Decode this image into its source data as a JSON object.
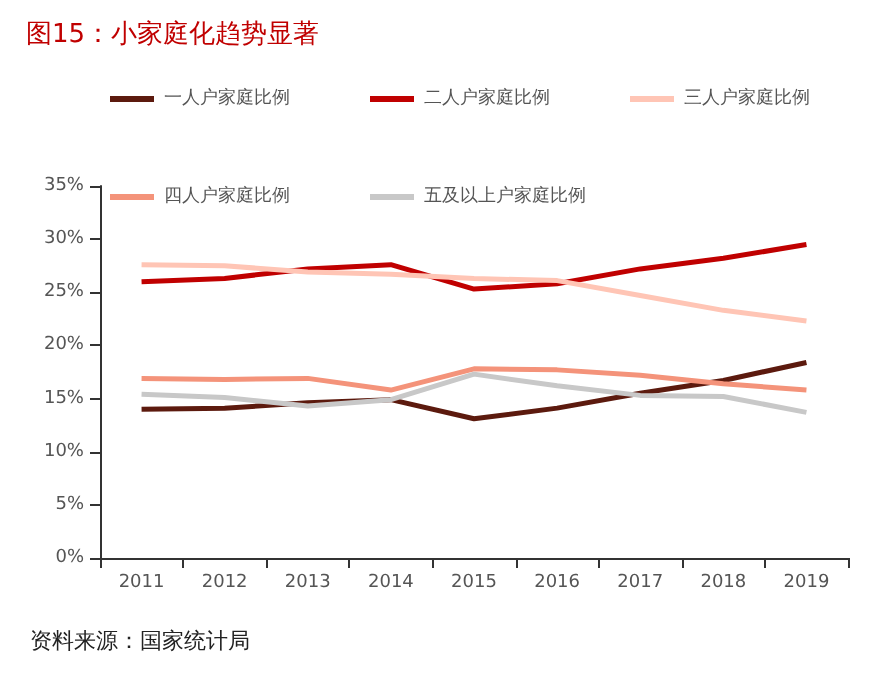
{
  "chart_data": {
    "type": "line",
    "title": "图15：小家庭化趋势显著",
    "categories": [
      "2011",
      "2012",
      "2013",
      "2014",
      "2015",
      "2016",
      "2017",
      "2018",
      "2019"
    ],
    "series": [
      {
        "name": "一人户家庭比例",
        "color": "#5c1a0e",
        "values": [
          14.0,
          14.1,
          14.6,
          14.9,
          13.1,
          14.1,
          15.5,
          16.7,
          18.4
        ]
      },
      {
        "name": "二人户家庭比例",
        "color": "#c00000",
        "values": [
          26.0,
          26.3,
          27.2,
          27.6,
          25.3,
          25.8,
          27.2,
          28.2,
          29.5
        ]
      },
      {
        "name": "三人户家庭比例",
        "color": "#ffc5b5",
        "values": [
          27.6,
          27.5,
          26.9,
          26.7,
          26.3,
          26.1,
          24.7,
          23.3,
          22.3
        ]
      },
      {
        "name": "四人户家庭比例",
        "color": "#f4937a",
        "values": [
          16.9,
          16.8,
          16.9,
          15.8,
          17.8,
          17.7,
          17.2,
          16.4,
          15.8
        ]
      },
      {
        "name": "五及以上户家庭比例",
        "color": "#c8c8c8",
        "values": [
          15.4,
          15.1,
          14.3,
          14.9,
          17.3,
          16.2,
          15.3,
          15.2,
          13.7
        ]
      }
    ],
    "ylim": [
      0,
      35
    ],
    "yticks": [
      {
        "value": 0,
        "label": "0%"
      },
      {
        "value": 5,
        "label": "5%"
      },
      {
        "value": 10,
        "label": "10%"
      },
      {
        "value": 15,
        "label": "15%"
      },
      {
        "value": 20,
        "label": "20%"
      },
      {
        "value": 25,
        "label": "25%"
      },
      {
        "value": 30,
        "label": "30%"
      },
      {
        "value": 35,
        "label": "35%"
      }
    ],
    "grid": false,
    "legend": "top",
    "marker": "none",
    "line_style": "solid",
    "annotations": [
      "资料来源：国家统计局"
    ]
  }
}
